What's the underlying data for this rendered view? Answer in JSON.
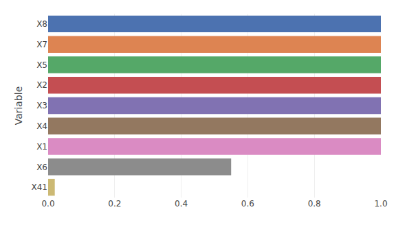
{
  "chart_data": {
    "type": "bar",
    "orientation": "horizontal",
    "categories": [
      "X8",
      "X7",
      "X5",
      "X2",
      "X3",
      "X4",
      "X1",
      "X6",
      "X41"
    ],
    "values": [
      1.0,
      1.0,
      1.0,
      1.0,
      1.0,
      1.0,
      1.0,
      0.55,
      0.02
    ],
    "colors": [
      "#4c72b0",
      "#dd8452",
      "#55a868",
      "#c44e52",
      "#8172b2",
      "#937860",
      "#da8bc3",
      "#8c8c8c",
      "#ccb974"
    ],
    "ylabel": "Variable",
    "xlim": [
      0.0,
      1.0
    ],
    "xticks": [
      {
        "value": 0.0,
        "label": "0.0"
      },
      0.2,
      0.4,
      0.6,
      0.8,
      {
        "value": 1.0,
        "label": "1.0"
      }
    ],
    "grid": true
  }
}
